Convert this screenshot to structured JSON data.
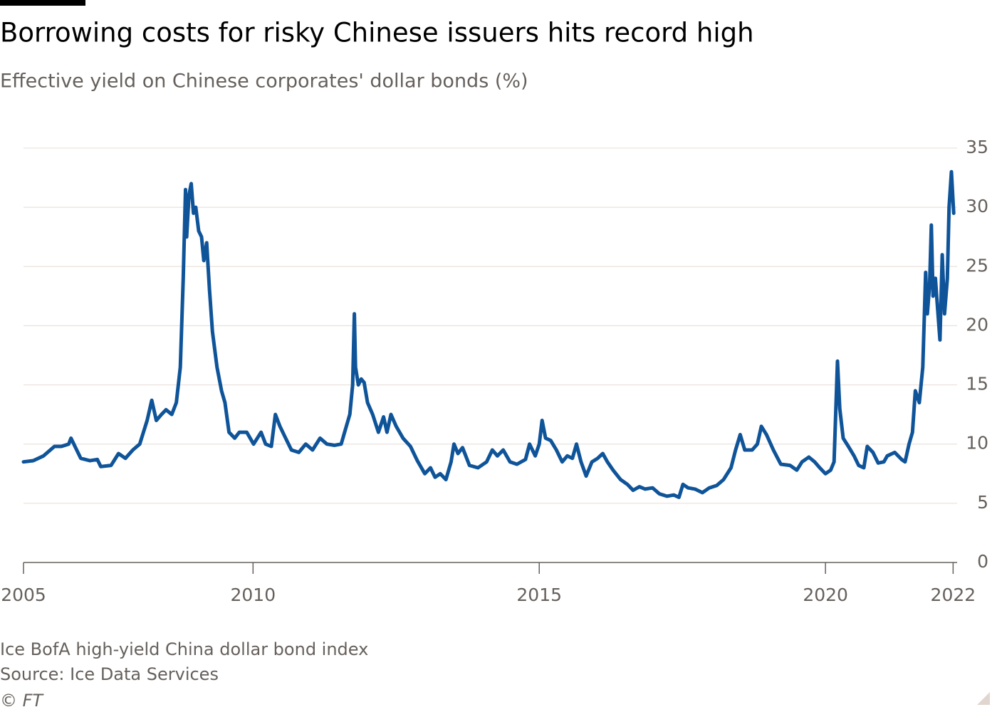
{
  "chart_data": {
    "type": "line",
    "title": "Borrowing costs for risky Chinese issuers hits record high",
    "subtitle": "Effective yield on Chinese corporates' dollar bonds (%)",
    "note": "Ice BofA high-yield China dollar bond index",
    "source": "Source: Ice Data Services",
    "credit": "© FT",
    "color": "#0f5499",
    "grid": true,
    "xlim": [
      2005.99,
      2022.3
    ],
    "xticks": [
      {
        "value": 2005.99,
        "label": "2005"
      },
      2010,
      2015,
      2020,
      {
        "value": 2022.23,
        "label": "2022"
      }
    ],
    "ylim": [
      0,
      35
    ],
    "yticks": [
      0,
      5,
      10,
      15,
      20,
      25,
      30,
      35
    ],
    "x": [
      2005.99,
      2006.16,
      2006.34,
      2006.53,
      2006.65,
      2006.78,
      2006.82,
      2006.9,
      2006.99,
      2007.15,
      2007.28,
      2007.34,
      2007.52,
      2007.65,
      2007.77,
      2007.9,
      2008.02,
      2008.15,
      2008.23,
      2008.31,
      2008.4,
      2008.48,
      2008.58,
      2008.66,
      2008.73,
      2008.78,
      2008.82,
      2008.84,
      2008.88,
      2008.92,
      2008.96,
      2009.0,
      2009.05,
      2009.1,
      2009.14,
      2009.19,
      2009.24,
      2009.29,
      2009.37,
      2009.45,
      2009.51,
      2009.58,
      2009.68,
      2009.76,
      2009.89,
      2010.01,
      2010.14,
      2010.22,
      2010.32,
      2010.39,
      2010.47,
      2010.57,
      2010.67,
      2010.8,
      2010.92,
      2011.04,
      2011.17,
      2011.29,
      2011.42,
      2011.54,
      2011.63,
      2011.69,
      2011.74,
      2011.77,
      2011.79,
      2011.84,
      2011.89,
      2011.94,
      2012.0,
      2012.09,
      2012.19,
      2012.28,
      2012.34,
      2012.41,
      2012.5,
      2012.62,
      2012.75,
      2012.87,
      2013.0,
      2013.1,
      2013.18,
      2013.27,
      2013.37,
      2013.46,
      2013.51,
      2013.58,
      2013.66,
      2013.78,
      2013.93,
      2014.08,
      2014.18,
      2014.27,
      2014.37,
      2014.49,
      2014.61,
      2014.76,
      2014.83,
      2014.93,
      2015.0,
      2015.05,
      2015.11,
      2015.2,
      2015.3,
      2015.4,
      2015.49,
      2015.58,
      2015.65,
      2015.73,
      2015.82,
      2015.92,
      2016.02,
      2016.11,
      2016.19,
      2016.29,
      2016.42,
      2016.54,
      2016.64,
      2016.75,
      2016.85,
      2016.98,
      2017.1,
      2017.23,
      2017.35,
      2017.44,
      2017.51,
      2017.6,
      2017.72,
      2017.85,
      2017.97,
      2018.1,
      2018.22,
      2018.35,
      2018.43,
      2018.51,
      2018.59,
      2018.72,
      2018.81,
      2018.88,
      2018.97,
      2019.09,
      2019.22,
      2019.38,
      2019.5,
      2019.59,
      2019.71,
      2019.81,
      2019.9,
      2020.0,
      2020.09,
      2020.15,
      2020.21,
      2020.25,
      2020.31,
      2020.4,
      2020.5,
      2020.58,
      2020.67,
      2020.73,
      2020.83,
      2020.92,
      2021.02,
      2021.08,
      2021.21,
      2021.33,
      2021.39,
      2021.46,
      2021.52,
      2021.57,
      2021.64,
      2021.7,
      2021.75,
      2021.78,
      2021.82,
      2021.85,
      2021.88,
      2021.92,
      2021.95,
      2022.0,
      2022.04,
      2022.08,
      2022.13,
      2022.16,
      2022.2,
      2022.24
    ],
    "values": [
      8.5,
      8.6,
      9.0,
      9.8,
      9.8,
      10.0,
      10.5,
      9.7,
      8.8,
      8.6,
      8.7,
      8.1,
      8.2,
      9.2,
      8.8,
      9.5,
      10.0,
      12.0,
      13.7,
      12.0,
      12.5,
      12.9,
      12.5,
      13.5,
      16.5,
      24.0,
      31.5,
      27.5,
      31.0,
      32.0,
      29.5,
      30.0,
      28.0,
      27.5,
      25.5,
      27.0,
      23.0,
      19.5,
      16.5,
      14.5,
      13.5,
      11.0,
      10.5,
      11.0,
      11.0,
      10.0,
      11.0,
      10.0,
      9.8,
      12.5,
      11.5,
      10.5,
      9.5,
      9.3,
      10.0,
      9.5,
      10.5,
      10.0,
      9.9,
      10.0,
      11.5,
      12.5,
      15.0,
      21.0,
      16.5,
      15.0,
      15.5,
      15.2,
      13.5,
      12.5,
      11.0,
      12.3,
      11.0,
      12.5,
      11.5,
      10.5,
      9.8,
      8.6,
      7.5,
      8.0,
      7.2,
      7.5,
      7.0,
      8.5,
      10.0,
      9.2,
      9.7,
      8.2,
      8.0,
      8.5,
      9.5,
      9.0,
      9.5,
      8.5,
      8.3,
      8.7,
      10.0,
      9.0,
      10.0,
      12.0,
      10.5,
      10.3,
      9.5,
      8.5,
      9.0,
      8.8,
      10.0,
      8.5,
      7.3,
      8.5,
      8.8,
      9.2,
      8.5,
      7.8,
      7.0,
      6.6,
      6.1,
      6.4,
      6.2,
      6.3,
      5.8,
      5.6,
      5.7,
      5.5,
      6.6,
      6.3,
      6.2,
      5.9,
      6.3,
      6.5,
      7.0,
      8.0,
      9.5,
      10.8,
      9.5,
      9.5,
      10.0,
      11.5,
      10.8,
      9.5,
      8.3,
      8.2,
      7.8,
      8.5,
      8.9,
      8.5,
      8.0,
      7.5,
      7.8,
      8.5,
      17.0,
      13.0,
      10.5,
      9.8,
      9.0,
      8.2,
      8.0,
      9.8,
      9.3,
      8.4,
      8.5,
      9.0,
      9.3,
      8.7,
      8.5,
      10.0,
      11.0,
      14.5,
      13.5,
      16.5,
      24.5,
      21.0,
      23.5,
      28.5,
      22.5,
      24.0,
      22.0,
      18.8,
      26.0,
      21.0,
      24.0,
      30.0,
      33.0,
      29.5
    ]
  }
}
